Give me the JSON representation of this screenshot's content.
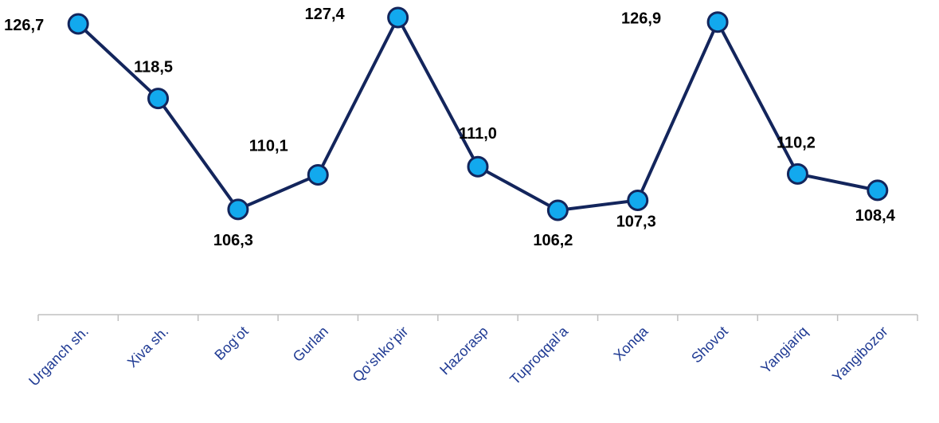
{
  "chart_data": {
    "type": "line",
    "categories": [
      "Urganch sh.",
      "Xiva sh.",
      "Bog‘ot",
      "Gurlan",
      "Qo‘shko‘pir",
      "Hazorasp",
      "Tuproqqal’a",
      "Xonqa",
      "Shovot",
      "Yangiariq",
      "Yangibozor"
    ],
    "series": [
      {
        "values": [
          126.7,
          118.5,
          106.3,
          110.1,
          127.4,
          111.0,
          106.2,
          107.3,
          126.9,
          110.2,
          108.4
        ]
      }
    ],
    "data_labels": [
      "126,7",
      "118,5",
      "106,3",
      "110,1",
      "127,4",
      "111,0",
      "106,2",
      "107,3",
      "126,9",
      "110,2",
      "108,4"
    ],
    "title": "",
    "xlabel": "",
    "ylabel": "",
    "ylim": [
      100,
      128
    ],
    "grid": false,
    "legend": "none",
    "colors": {
      "line": "#13255c",
      "marker_fill": "#12a9ee",
      "marker_stroke": "#13255c",
      "axis": "#c0c0c0",
      "tick_text": "#1f3a93",
      "label_text": "#000000"
    }
  }
}
